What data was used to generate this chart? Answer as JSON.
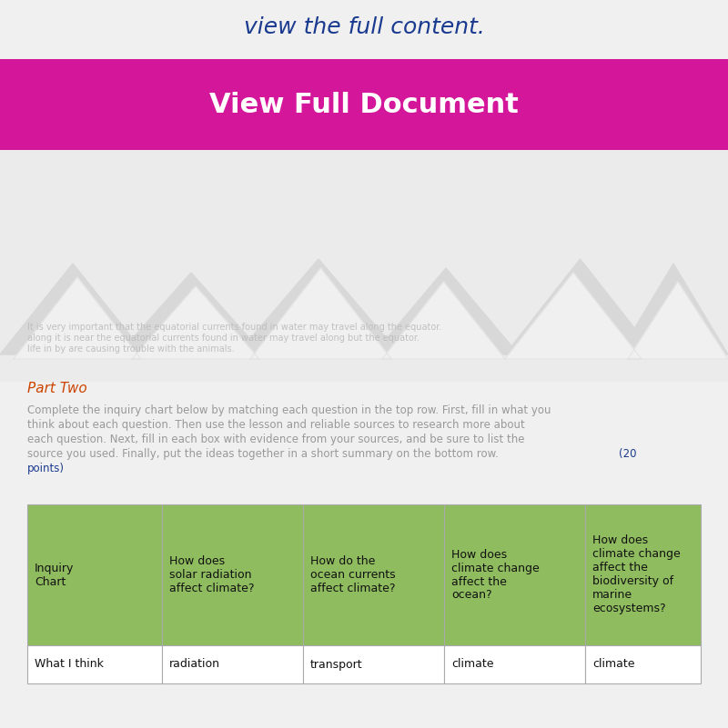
{
  "bg_color": "#f0f0f0",
  "top_text": "view the full content.",
  "top_text_color": "#1a3a8f",
  "banner_color": "#d4169a",
  "banner_text": "View Full Document",
  "banner_text_color": "#ffffff",
  "mountain_color": "#e0e0e0",
  "mountain_outline": "#cccccc",
  "blurred_text_color": "#aaaaaa",
  "part_two_color": "#cc4400",
  "body_text_color": "#999999",
  "points_color": "#1a3a8f",
  "table_header_bg": "#8fbc5e",
  "table_row_bg": "#ffffff",
  "table_border_color": "#aaaaaa",
  "table_headers": [
    "Inquiry\nChart",
    "How does\nsolar radiation\naffect climate?",
    "How do the\nocean currents\naffect climate?",
    "How does\nclimate change\naffect the\nocean?",
    "How does\nclimate change\naffect the\nbiodiversity of\nmarine\necosystems?"
  ],
  "table_row1": [
    "What I think",
    "radiation",
    "transport",
    "climate",
    "climate"
  ],
  "body_lines": [
    "Complete the inquiry chart below by matching each question in the top row. First, fill in what you",
    "think about each question. Then use the lesson and reliable sources to research more about",
    "each question. Next, fill in each box with evidence from your sources, and be sure to list the",
    "source you used. Finally, put the ideas together in a short summary on the bottom row."
  ],
  "points_line": "(20 points)"
}
